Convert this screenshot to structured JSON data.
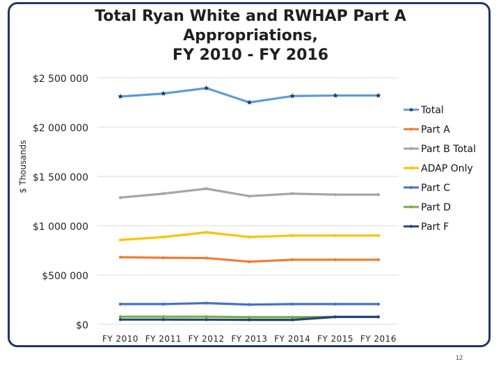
{
  "chart_data": {
    "type": "line",
    "title_lines": [
      "Total Ryan White and RWHAP Part A",
      "Appropriations,",
      "FY 2010 - FY 2016"
    ],
    "ylabel": "$ Thousands",
    "xlabel": "",
    "categories": [
      "FY 2010",
      "FY 2011",
      "FY 2012",
      "FY 2013",
      "FY 2014",
      "FY 2015",
      "FY 2016"
    ],
    "y_ticks": [
      {
        "value": 0,
        "label": "$0"
      },
      {
        "value": 500000,
        "label": "$500 000"
      },
      {
        "value": 1000000,
        "label": "$1 000 000"
      },
      {
        "value": 1500000,
        "label": "$1 500 000"
      },
      {
        "value": 2000000,
        "label": "$2 000 000"
      },
      {
        "value": 2500000,
        "label": "$2 500 000"
      }
    ],
    "ylim": [
      0,
      2500000
    ],
    "grid": true,
    "legend_position": "right",
    "series": [
      {
        "name": "Total",
        "color": "#5b9bd5",
        "marker": "star",
        "values": [
          2310000,
          2340000,
          2395000,
          2250000,
          2315000,
          2320000,
          2320000
        ]
      },
      {
        "name": "Part A",
        "color": "#ed7d31",
        "marker": "dot",
        "values": [
          680000,
          675000,
          672000,
          635000,
          655000,
          655000,
          655000
        ]
      },
      {
        "name": "Part B Total",
        "color": "#a5a5a5",
        "marker": "dot",
        "values": [
          1285000,
          1325000,
          1375000,
          1300000,
          1325000,
          1315000,
          1315000
        ]
      },
      {
        "name": "ADAP Only",
        "color": "#ffc000",
        "marker": "dot",
        "values": [
          855000,
          885000,
          933000,
          885000,
          900000,
          900000,
          900000
        ]
      },
      {
        "name": "Part C",
        "color": "#4472c4",
        "marker": "dot",
        "values": [
          205000,
          205000,
          215000,
          200000,
          205000,
          205000,
          205000
        ]
      },
      {
        "name": "Part D",
        "color": "#70ad47",
        "marker": "dot",
        "values": [
          77000,
          77000,
          77000,
          72000,
          72000,
          75000,
          75000
        ]
      },
      {
        "name": "Part F",
        "color": "#264478",
        "marker": "dot",
        "values": [
          48000,
          48000,
          47000,
          45000,
          45000,
          75000,
          75000
        ]
      }
    ]
  },
  "footer": {
    "page_number": "12"
  }
}
